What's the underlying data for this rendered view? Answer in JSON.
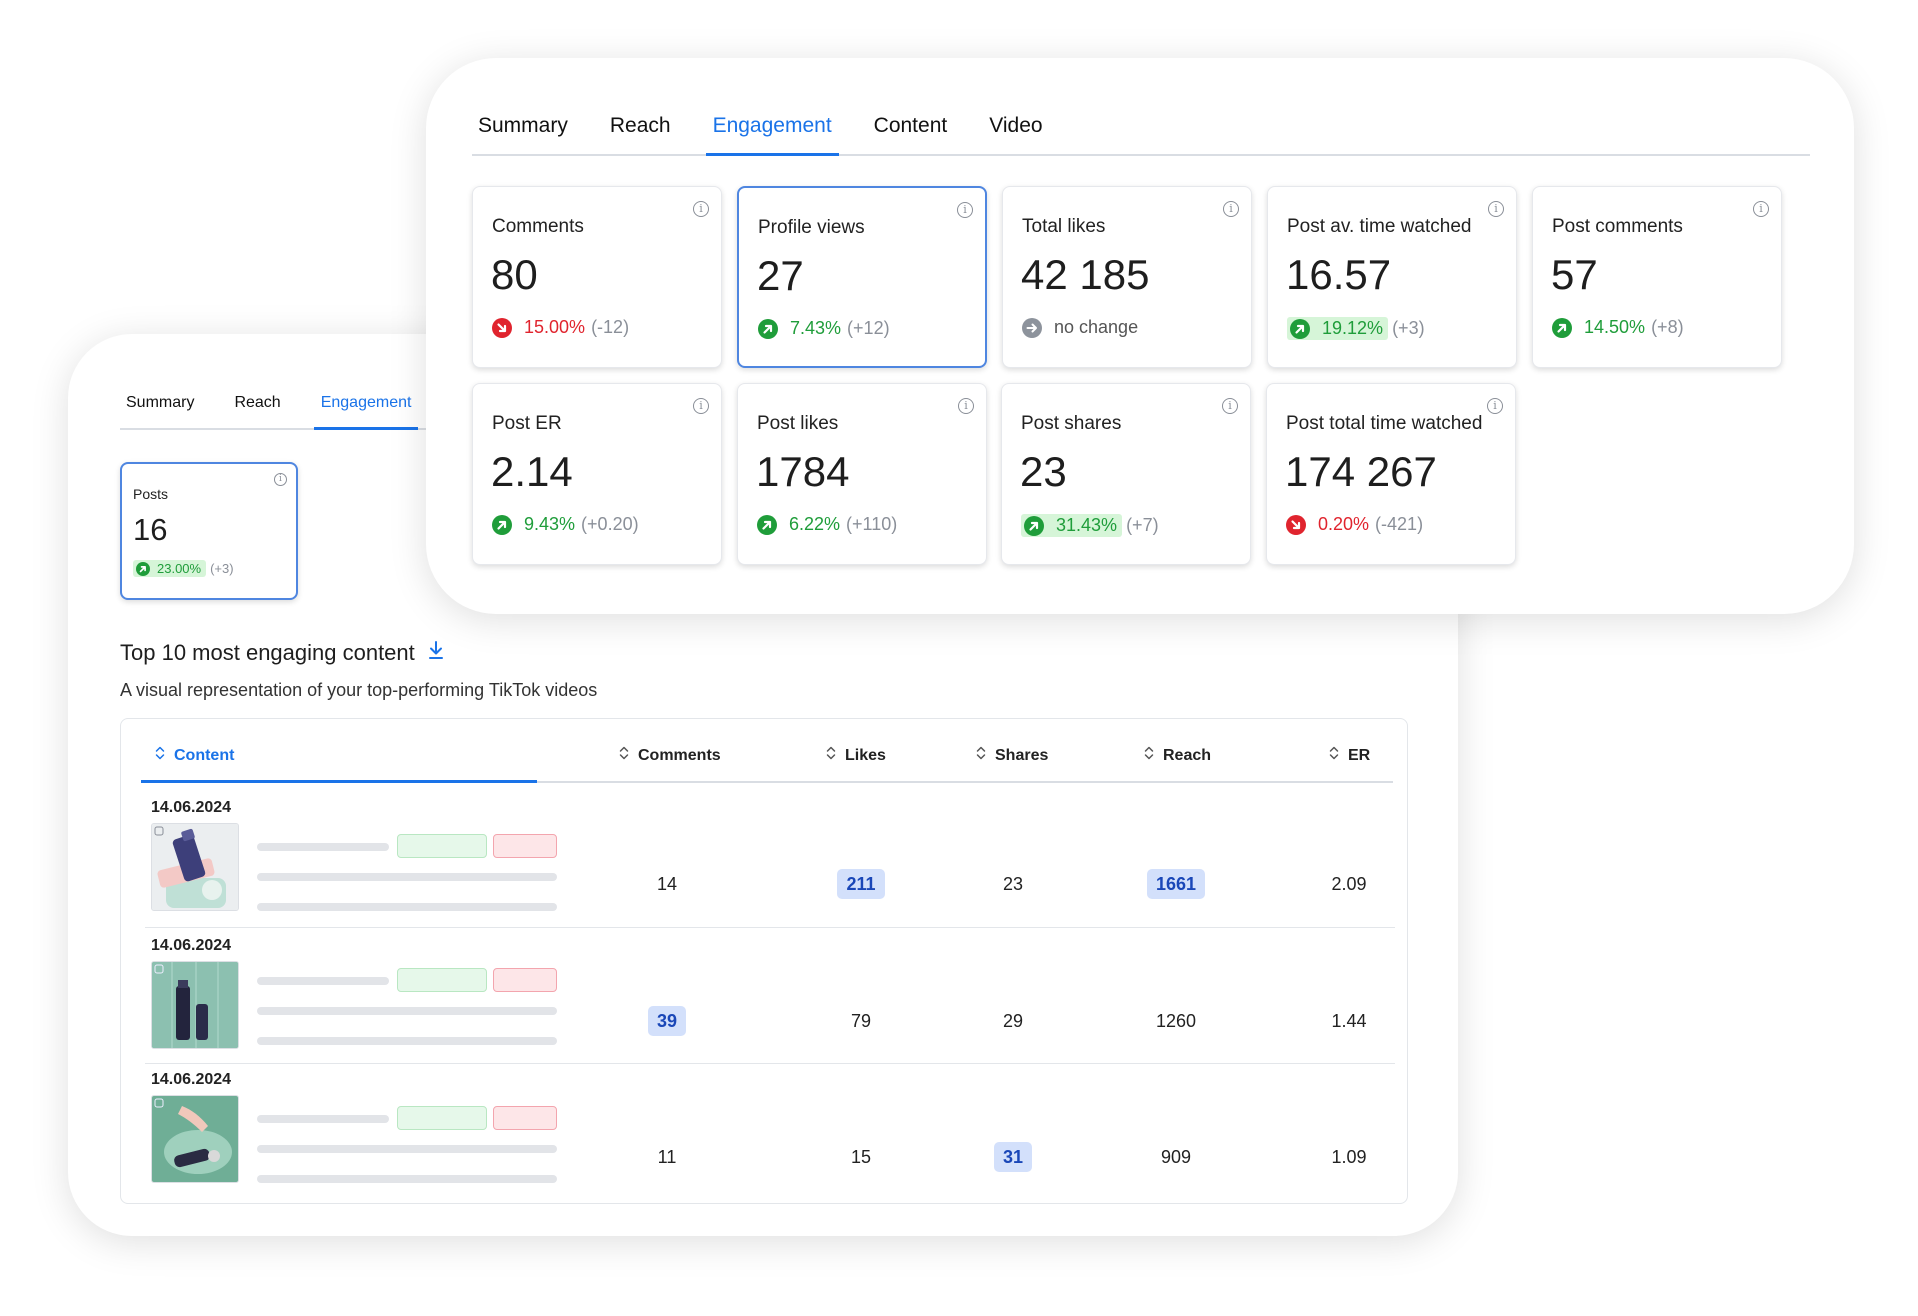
{
  "back": {
    "tabs": [
      "Summary",
      "Reach",
      "Engagement"
    ],
    "active_tab": 2,
    "posts_card": {
      "label": "Posts",
      "value": "16",
      "pct": "23.00%",
      "delta": "(+3)"
    },
    "section_title": "Top 10 most engaging content",
    "section_subtitle": "A visual representation of your top-performing TikTok videos",
    "table": {
      "headers": {
        "content": "Content",
        "comments": "Comments",
        "likes": "Likes",
        "shares": "Shares",
        "reach": "Reach",
        "er": "ER"
      },
      "rows": [
        {
          "date": "14.06.2024",
          "comments": "14",
          "likes": "211",
          "shares": "23",
          "reach": "1661",
          "er": "2.09"
        },
        {
          "date": "14.06.2024",
          "comments": "39",
          "likes": "79",
          "shares": "29",
          "reach": "1260",
          "er": "1.44"
        },
        {
          "date": "14.06.2024",
          "comments": "11",
          "likes": "15",
          "shares": "31",
          "reach": "909",
          "er": "1.09"
        }
      ]
    }
  },
  "front": {
    "tabs": [
      "Summary",
      "Reach",
      "Engagement",
      "Content",
      "Video"
    ],
    "active_tab": 2,
    "cards": [
      {
        "label": "Comments",
        "value": "80",
        "direction": "down",
        "pct": "15.00%",
        "delta": "(-12)"
      },
      {
        "label": "Profile views",
        "value": "27",
        "direction": "up",
        "pct": "7.43%",
        "delta": "(+12)"
      },
      {
        "label": "Total likes",
        "value": "42 185",
        "direction": "flat",
        "pct": "no change",
        "delta": ""
      },
      {
        "label": "Post av. time watched",
        "value": "16.57",
        "direction": "up",
        "pct": "19.12%",
        "delta": "(+3)"
      },
      {
        "label": "Post comments",
        "value": "57",
        "direction": "up",
        "pct": "14.50%",
        "delta": "(+8)"
      },
      {
        "label": "Post ER",
        "value": "2.14",
        "direction": "up",
        "pct": "9.43%",
        "delta": "(+0.20)"
      },
      {
        "label": "Post likes",
        "value": "1784",
        "direction": "up",
        "pct": "6.22%",
        "delta": "(+110)"
      },
      {
        "label": "Post shares",
        "value": "23",
        "direction": "up",
        "pct": "31.43%",
        "delta": "(+7)"
      },
      {
        "label": "Post total time watched",
        "value": "174 267",
        "direction": "down",
        "pct": "0.20%",
        "delta": "(-421)"
      }
    ]
  },
  "colors": {
    "accent": "#1a73e8",
    "positive": "#1f9d3a",
    "negative": "#e0242e",
    "highlight": "#d3e0fb"
  },
  "icons": {
    "info": "info-icon",
    "download": "download-icon",
    "sort": "sort-icon",
    "trend_up": "trend-up-icon",
    "trend_down": "trend-down-icon"
  }
}
